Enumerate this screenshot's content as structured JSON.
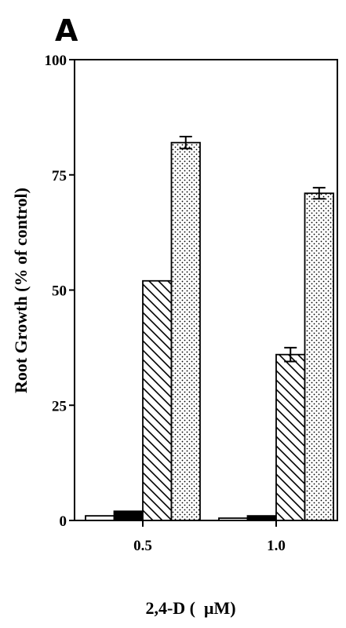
{
  "panel_label": "A",
  "chart_data": {
    "type": "bar",
    "categories": [
      "0.5",
      "1.0"
    ],
    "series": [
      {
        "fill": "white",
        "values": [
          1,
          0.5
        ],
        "errors": [
          null,
          null
        ]
      },
      {
        "fill": "black",
        "values": [
          2,
          1
        ],
        "errors": [
          null,
          null
        ]
      },
      {
        "fill": "diagonal-hatch",
        "values": [
          52,
          36
        ],
        "errors": [
          null,
          1.5
        ]
      },
      {
        "fill": "dots",
        "values": [
          82,
          71
        ],
        "errors": [
          1.3,
          1.2
        ]
      }
    ],
    "xlabel": "2,4-D (  μM)",
    "ylabel": "Root Growth (% of control)",
    "ylim": [
      0,
      100
    ],
    "yticks": [
      0,
      25,
      50,
      75,
      100
    ],
    "ytick_labels": [
      "0",
      "25",
      "50",
      "75",
      "100"
    ],
    "grid": false,
    "legend": "none"
  }
}
